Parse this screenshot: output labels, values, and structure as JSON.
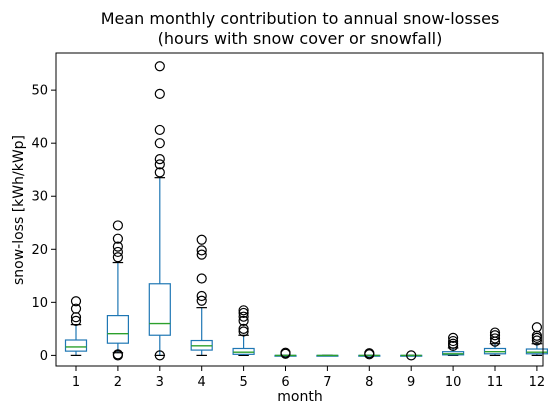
{
  "chart_data": {
    "type": "box",
    "title": "Mean monthly contribution to annual snow-losses",
    "subtitle": "(hours with snow cover or snowfall)",
    "xlabel": "month",
    "ylabel": "snow-loss [kWh/kWp]",
    "ylim": [
      -2,
      57
    ],
    "yticks": [
      0,
      10,
      20,
      30,
      40,
      50
    ],
    "grid": false,
    "colors": {
      "box": "#1f77b4",
      "median": "#2ca02c",
      "flier": "#000000"
    },
    "categories": [
      "1",
      "2",
      "3",
      "4",
      "5",
      "6",
      "7",
      "8",
      "9",
      "10",
      "11",
      "12"
    ],
    "boxes": [
      {
        "month": "1",
        "whislo": 0.0,
        "q1": 0.8,
        "med": 1.6,
        "q3": 2.9,
        "whishi": 5.8,
        "fliers": [
          6.5,
          7.2,
          8.8,
          10.2
        ]
      },
      {
        "month": "2",
        "whislo": 0.5,
        "q1": 2.3,
        "med": 4.1,
        "q3": 7.5,
        "whishi": 17.5,
        "fliers": [
          0.0,
          0.2,
          18.5,
          19.5,
          20.5,
          22.0,
          24.5
        ]
      },
      {
        "month": "3",
        "whislo": 0.0,
        "q1": 3.8,
        "med": 6.0,
        "q3": 13.5,
        "whishi": 33.5,
        "fliers": [
          0.0,
          34.5,
          36.0,
          37.0,
          40.0,
          42.5,
          49.3,
          54.5
        ]
      },
      {
        "month": "4",
        "whislo": 0.0,
        "q1": 1.0,
        "med": 1.8,
        "q3": 2.8,
        "whishi": 9.0,
        "fliers": [
          10.3,
          11.2,
          14.5,
          19.0,
          19.8,
          21.8
        ]
      },
      {
        "month": "5",
        "whislo": 0.0,
        "q1": 0.2,
        "med": 0.6,
        "q3": 1.3,
        "whishi": 3.8,
        "fliers": [
          4.5,
          5.0,
          6.5,
          7.3,
          8.0,
          8.5
        ]
      },
      {
        "month": "6",
        "whislo": 0.0,
        "q1": 0.0,
        "med": 0.0,
        "q3": 0.0,
        "whishi": 0.0,
        "fliers": [
          0.3,
          0.5
        ]
      },
      {
        "month": "7",
        "whislo": 0.0,
        "q1": 0.0,
        "med": 0.0,
        "q3": 0.0,
        "whishi": 0.0,
        "fliers": []
      },
      {
        "month": "8",
        "whislo": 0.0,
        "q1": 0.0,
        "med": 0.0,
        "q3": 0.0,
        "whishi": 0.0,
        "fliers": [
          0.2,
          0.4
        ]
      },
      {
        "month": "9",
        "whislo": 0.0,
        "q1": 0.0,
        "med": 0.0,
        "q3": 0.0,
        "whishi": 0.0,
        "fliers": [
          0.0
        ]
      },
      {
        "month": "10",
        "whislo": 0.0,
        "q1": 0.1,
        "med": 0.3,
        "q3": 0.7,
        "whishi": 1.4,
        "fliers": [
          1.8,
          2.2,
          2.7,
          3.3
        ]
      },
      {
        "month": "11",
        "whislo": 0.0,
        "q1": 0.3,
        "med": 0.7,
        "q3": 1.3,
        "whishi": 2.2,
        "fliers": [
          2.6,
          3.2,
          3.8,
          4.3
        ]
      },
      {
        "month": "12",
        "whislo": 0.0,
        "q1": 0.3,
        "med": 0.6,
        "q3": 1.2,
        "whishi": 2.2,
        "fliers": [
          2.8,
          3.3,
          3.7,
          5.3
        ]
      }
    ]
  }
}
